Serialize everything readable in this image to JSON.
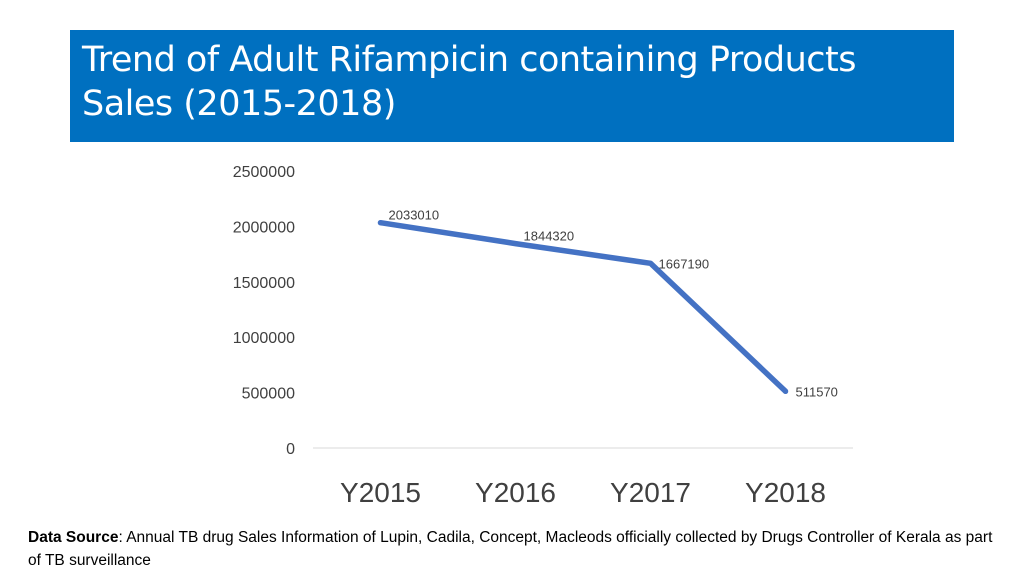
{
  "slide": {
    "title": "Trend of Adult Rifampicin containing Products Sales (2015-2018)",
    "source_label": "Data Source",
    "source_text": ": Annual TB drug Sales Information of Lupin, Cadila, Concept, Macleods officially collected by Drugs Controller of Kerala as part of TB surveillance"
  },
  "colors": {
    "title_bg": "#0070C0",
    "line": "#4472C4",
    "gridline": "#D9D9D9",
    "tick_text": "#404040",
    "category_text": "#404040"
  },
  "chart_data": {
    "type": "line",
    "categories": [
      "Y2015",
      "Y2016",
      "Y2017",
      "Y2018"
    ],
    "series": [
      {
        "values": [
          2033010,
          1844320,
          1667190,
          511570
        ]
      }
    ],
    "data_labels": [
      "2033010",
      "1844320",
      "1667190",
      "511570"
    ],
    "yticks": [
      "0",
      "500000",
      "1000000",
      "1500000",
      "2000000",
      "2500000"
    ],
    "ylim": [
      0,
      2500000
    ],
    "grid": false,
    "legend": "none"
  }
}
